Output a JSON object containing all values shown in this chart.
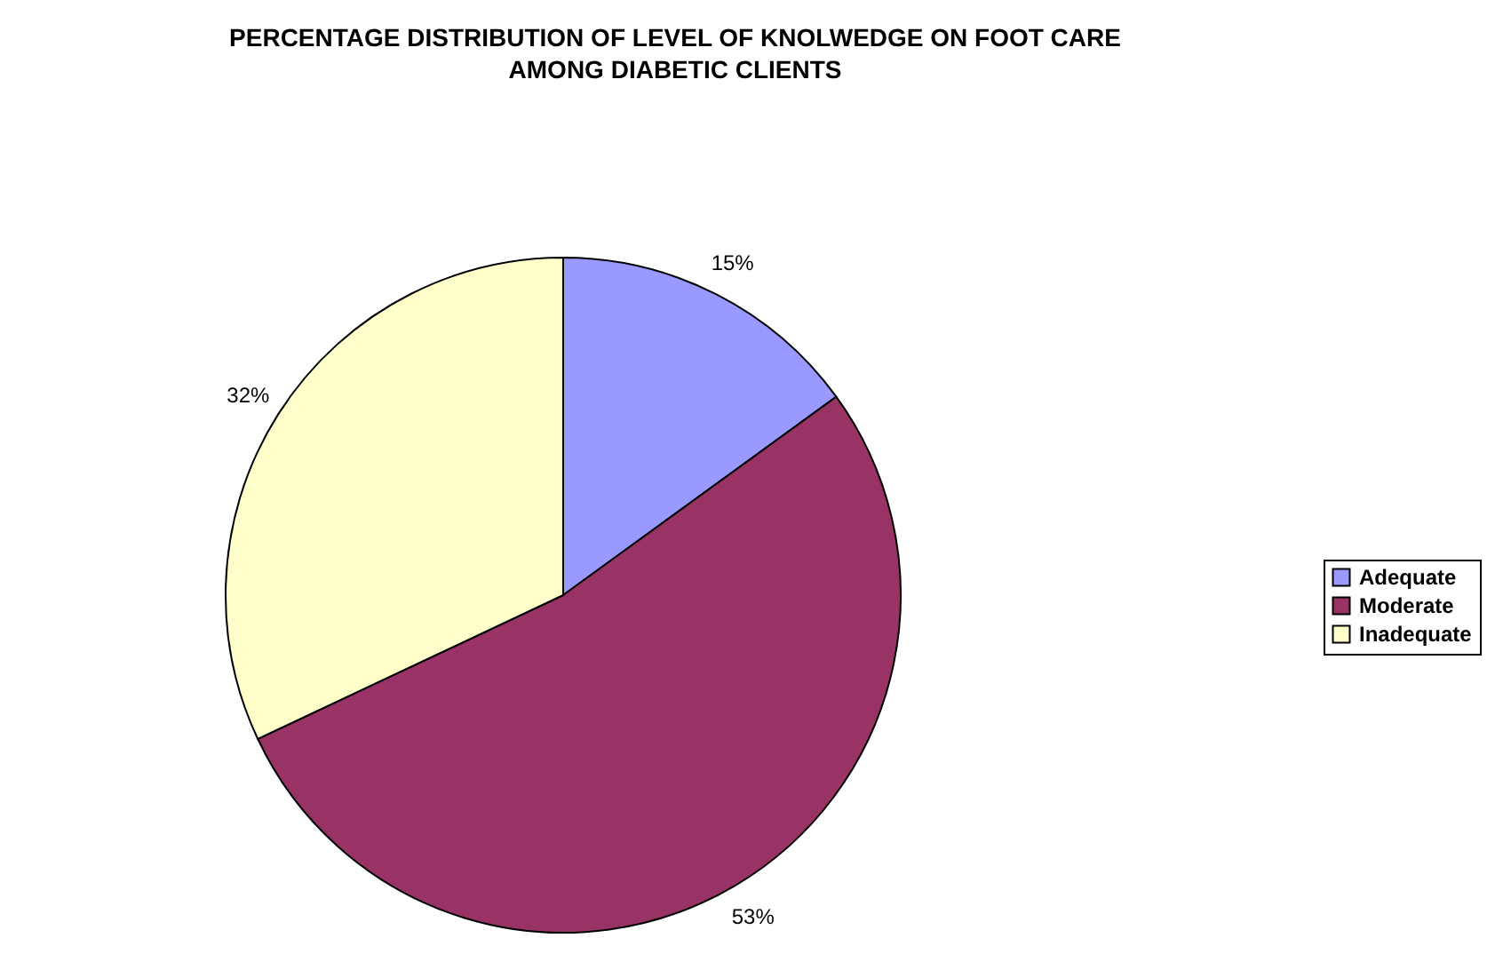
{
  "chart_data": {
    "type": "pie",
    "title": [
      "PERCENTAGE DISTRIBUTION OF LEVEL OF KNOLWEDGE ON FOOT CARE",
      "AMONG DIABETIC CLIENTS"
    ],
    "categories": [
      "Adequate",
      "Moderate",
      "Inadequate"
    ],
    "values": [
      15,
      53,
      32
    ],
    "colors": [
      "#9999ff",
      "#993366",
      "#ffffcc"
    ],
    "value_labels": [
      "15%",
      "53%",
      "32%"
    ],
    "legend": "right"
  }
}
